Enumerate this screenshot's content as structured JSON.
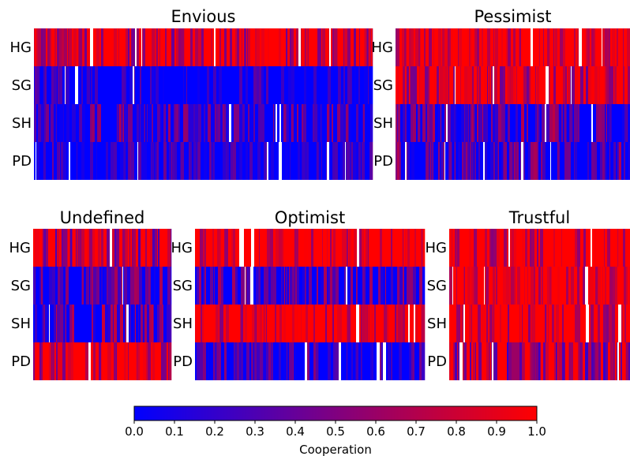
{
  "chart_data": {
    "type": "heatmap",
    "row_labels": [
      "HG",
      "SG",
      "SH",
      "PD"
    ],
    "colormap": {
      "low": "#0000ff",
      "mid": "#800080",
      "high": "#ff0000",
      "gap": "#ffffff"
    },
    "value_range": [
      0,
      1
    ],
    "colorbar": {
      "label": "Cooperation",
      "ticks": [
        "0.0",
        "0.1",
        "0.2",
        "0.3",
        "0.4",
        "0.5",
        "0.6",
        "0.7",
        "0.8",
        "0.9",
        "1.0"
      ]
    },
    "panels": [
      {
        "title": "Envious",
        "row_mean_cooperation": {
          "HG": 0.75,
          "SG": 0.05,
          "SH": 0.3,
          "PD": 0.1
        }
      },
      {
        "title": "Pessimist",
        "row_mean_cooperation": {
          "HG": 0.9,
          "SG": 0.75,
          "SH": 0.4,
          "PD": 0.35
        }
      },
      {
        "title": "Undefined",
        "row_mean_cooperation": {
          "HG": 0.6,
          "SG": 0.35,
          "SH": 0.45,
          "PD": 0.75
        }
      },
      {
        "title": "Optimist",
        "row_mean_cooperation": {
          "HG": 0.9,
          "SG": 0.35,
          "SH": 0.85,
          "PD": 0.2
        }
      },
      {
        "title": "Trustful",
        "row_mean_cooperation": {
          "HG": 0.85,
          "SG": 0.9,
          "SH": 0.85,
          "PD": 0.55
        }
      }
    ]
  }
}
